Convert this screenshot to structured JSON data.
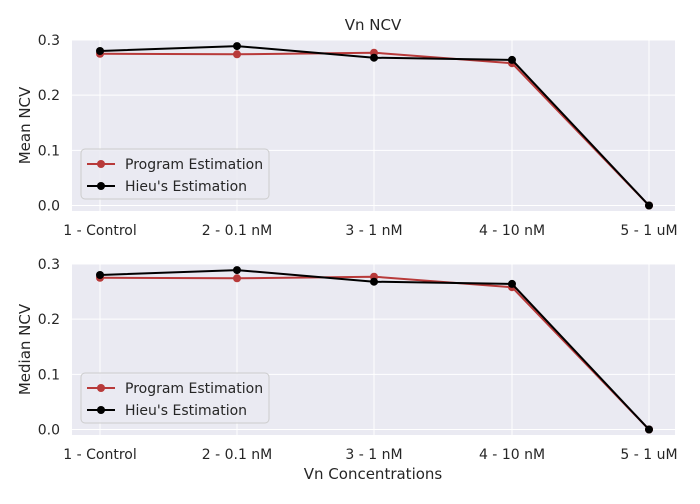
{
  "figure": {
    "title": "Vn NCV",
    "xlabel": "Vn Concentrations"
  },
  "colors": {
    "background": "#ffffff",
    "plot_bg": "#eaeaf2",
    "grid": "#ffffff",
    "text": "#262626",
    "program": "#b83a3a",
    "hieu": "#000000",
    "legend_bg": "#eaeaf2",
    "legend_border": "#cccccc"
  },
  "chart_data": [
    {
      "type": "line",
      "title": "Vn NCV",
      "xlabel": "",
      "ylabel": "Mean NCV",
      "categories": [
        "1 - Control",
        "2 - 0.1 nM",
        "3 - 1 nM",
        "4 - 10 nM",
        "5 - 1 uM"
      ],
      "yticks": [
        "0.0",
        "0.1",
        "0.2",
        "0.3"
      ],
      "ylim": [
        -0.01,
        0.3
      ],
      "grid": true,
      "legend": "lower-left",
      "series": [
        {
          "name": "Program Estimation",
          "color": "#b83a3a",
          "marker": "circle",
          "values": [
            0.275,
            0.274,
            0.277,
            0.258,
            0.0
          ]
        },
        {
          "name": "Hieu's Estimation",
          "color": "#000000",
          "marker": "circle",
          "values": [
            0.28,
            0.289,
            0.268,
            0.264,
            0.0
          ]
        }
      ]
    },
    {
      "type": "line",
      "title": "",
      "xlabel": "Vn Concentrations",
      "ylabel": "Median NCV",
      "categories": [
        "1 - Control",
        "2 - 0.1 nM",
        "3 - 1 nM",
        "4 - 10 nM",
        "5 - 1 uM"
      ],
      "yticks": [
        "0.0",
        "0.1",
        "0.2",
        "0.3"
      ],
      "ylim": [
        -0.01,
        0.3
      ],
      "grid": true,
      "legend": "lower-left",
      "series": [
        {
          "name": "Program Estimation",
          "color": "#b83a3a",
          "marker": "circle",
          "values": [
            0.275,
            0.274,
            0.277,
            0.258,
            0.0
          ]
        },
        {
          "name": "Hieu's Estimation",
          "color": "#000000",
          "marker": "circle",
          "values": [
            0.28,
            0.289,
            0.268,
            0.264,
            0.0
          ]
        }
      ]
    }
  ]
}
